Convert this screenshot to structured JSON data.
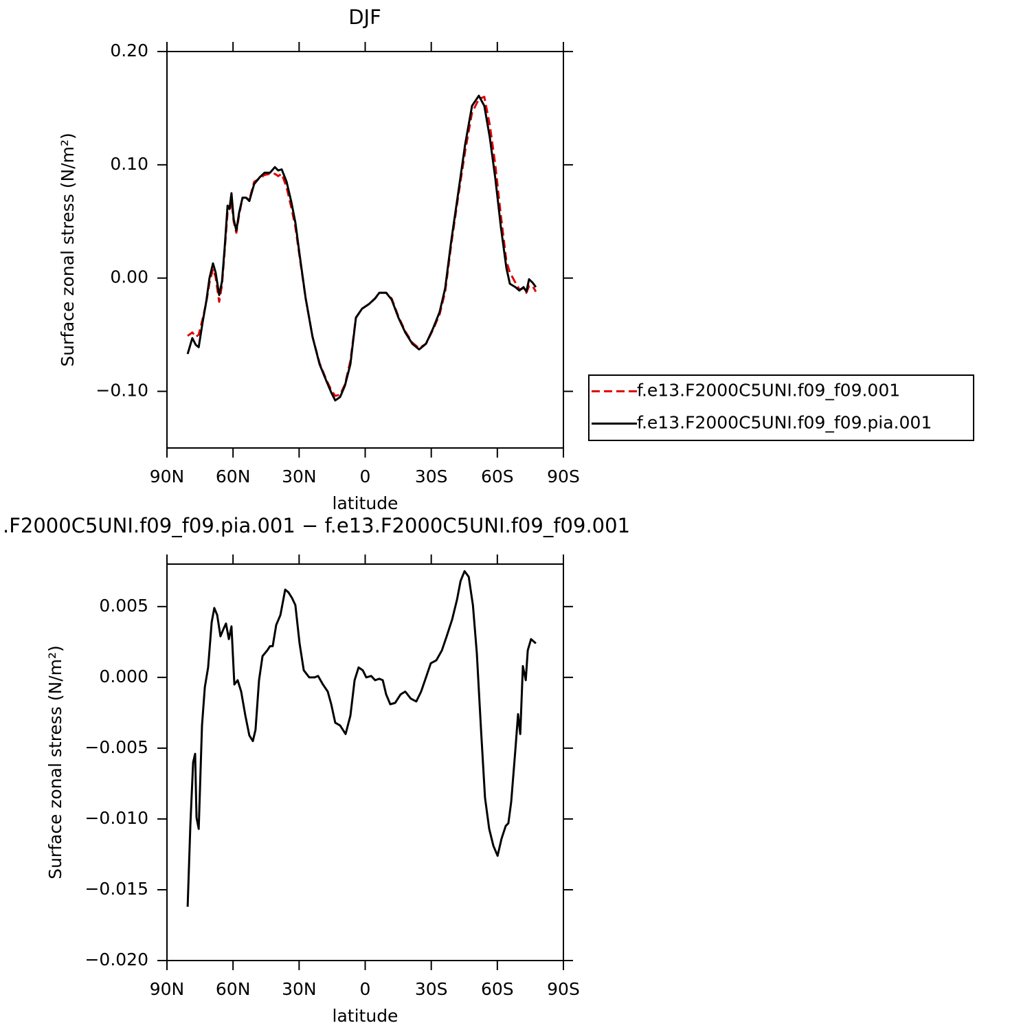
{
  "chart_data": [
    {
      "type": "line",
      "title": "DJF",
      "x_label": "latitude",
      "y_label": "Surface zonal stress (N/m²)",
      "xlim": [
        90,
        -90
      ],
      "ylim": [
        -0.15,
        0.2
      ],
      "xticks": [
        {
          "value": 90,
          "label": "90N"
        },
        {
          "value": 60,
          "label": "60N"
        },
        {
          "value": 30,
          "label": "30N"
        },
        0,
        {
          "value": -30,
          "label": "30S"
        },
        {
          "value": -60,
          "label": "60S"
        },
        {
          "value": -90,
          "label": "90S"
        }
      ],
      "yticks": [
        {
          "value": 0.2,
          "label": "0.20"
        },
        {
          "value": 0.1,
          "label": "0.10"
        },
        {
          "value": 0,
          "label": "0.00"
        },
        {
          "value": -0.1,
          "label": "−0.10"
        }
      ],
      "legend": "outside-right",
      "x": [
        80.6,
        78.5,
        76.9,
        75.6,
        73.8,
        72.2,
        70.7,
        69.1,
        67.9,
        66.3,
        65,
        63.8,
        62.5,
        61.6,
        60.7,
        59.7,
        58.5,
        57.2,
        55.7,
        54.1,
        52.6,
        50.4,
        47.9,
        45.7,
        43.2,
        41,
        39.5,
        37.9,
        35.7,
        33.5,
        31.7,
        29.8,
        27,
        23.9,
        20.7,
        17.6,
        15.4,
        13.6,
        11.4,
        9.2,
        6.7,
        4.2,
        1.4,
        -1.7,
        -4.5,
        -6.4,
        -9.5,
        -12,
        -15.1,
        -18.2,
        -21.4,
        -24.5,
        -27.6,
        -30.7,
        -33.8,
        -36.3,
        -39.1,
        -42.3,
        -45.4,
        -48.5,
        -51.6,
        -54.1,
        -56.6,
        -59.1,
        -61.6,
        -64.1,
        -65.7,
        -68.2,
        -70,
        -71.9,
        -73.2,
        -74.4,
        -76,
        -77.5
      ],
      "series": [
        {
          "name": "f.e13.F2000C5UNI.f09_f09.001",
          "color": "#e00000",
          "line_style": "dashed",
          "values": [
            -0.051,
            -0.048,
            -0.052,
            -0.05,
            -0.036,
            -0.022,
            -0.004,
            0.008,
            0.001,
            -0.021,
            -0.006,
            0.024,
            0.058,
            0.06,
            0.068,
            0.05,
            0.04,
            0.056,
            0.071,
            0.071,
            0.069,
            0.085,
            0.088,
            0.091,
            0.092,
            0.092,
            0.09,
            0.092,
            0.08,
            0.062,
            0.045,
            0.019,
            -0.018,
            -0.052,
            -0.075,
            -0.09,
            -0.099,
            -0.104,
            -0.103,
            -0.094,
            -0.073,
            -0.035,
            -0.027,
            -0.023,
            -0.018,
            -0.013,
            -0.013,
            -0.018,
            -0.034,
            -0.047,
            -0.057,
            -0.062,
            -0.058,
            -0.046,
            -0.032,
            -0.012,
            0.03,
            0.073,
            0.112,
            0.146,
            0.158,
            0.16,
            0.135,
            0.1,
            0.055,
            0.015,
            0.005,
            -0.004,
            -0.01,
            -0.009,
            -0.013,
            -0.007,
            -0.007,
            -0.012
          ]
        },
        {
          "name": "f.e13.F2000C5UNI.f09_f09.pia.001",
          "color": "#000000",
          "line_style": "solid",
          "values": [
            -0.067,
            -0.053,
            -0.059,
            -0.061,
            -0.039,
            -0.021,
            0,
            0.013,
            0.005,
            -0.015,
            -0.003,
            0.027,
            0.064,
            0.061,
            0.075,
            0.052,
            0.042,
            0.058,
            0.071,
            0.071,
            0.068,
            0.083,
            0.089,
            0.093,
            0.093,
            0.098,
            0.095,
            0.096,
            0.085,
            0.067,
            0.049,
            0.021,
            -0.018,
            -0.052,
            -0.076,
            -0.091,
            -0.101,
            -0.108,
            -0.105,
            -0.095,
            -0.076,
            -0.035,
            -0.027,
            -0.023,
            -0.018,
            -0.013,
            -0.013,
            -0.019,
            -0.035,
            -0.048,
            -0.058,
            -0.063,
            -0.058,
            -0.045,
            -0.03,
            -0.009,
            0.033,
            0.076,
            0.118,
            0.152,
            0.161,
            0.152,
            0.124,
            0.088,
            0.045,
            0.009,
            -0.005,
            -0.008,
            -0.011,
            -0.008,
            -0.012,
            -0.001,
            -0.004,
            -0.008
          ]
        }
      ]
    },
    {
      "type": "line",
      "title": ".F2000C5UNI.f09_f09.pia.001 − f.e13.F2000C5UNI.f09_f09.001",
      "x_label": "latitude",
      "y_label": "Surface zonal stress (N/m²)",
      "xlim": [
        90,
        -90
      ],
      "ylim": [
        -0.02,
        0.008
      ],
      "xticks": [
        {
          "value": 90,
          "label": "90N"
        },
        {
          "value": 60,
          "label": "60N"
        },
        {
          "value": 30,
          "label": "30N"
        },
        0,
        {
          "value": -30,
          "label": "30S"
        },
        {
          "value": -60,
          "label": "60S"
        },
        {
          "value": -90,
          "label": "90S"
        }
      ],
      "yticks": [
        0.005,
        {
          "value": 0,
          "label": "0.000"
        },
        {
          "value": -0.005,
          "label": "−0.005"
        },
        {
          "value": -0.01,
          "label": "−0.010"
        },
        {
          "value": -0.015,
          "label": "−0.015"
        },
        {
          "value": -0.02,
          "label": "−0.020"
        }
      ],
      "color": "#000000",
      "x": [
        80.6,
        79.4,
        78.1,
        77.2,
        76.6,
        75.6,
        74.1,
        72.8,
        71.3,
        69.7,
        68.5,
        67.2,
        65.7,
        64.4,
        63.2,
        61.9,
        60.7,
        59.4,
        57.9,
        56.3,
        54.4,
        52.6,
        51,
        49.8,
        48.2,
        46.6,
        44.5,
        43.2,
        42,
        40.4,
        38.5,
        36.3,
        34.8,
        33.2,
        31.7,
        29.8,
        27.9,
        25.4,
        22.9,
        21.4,
        19.2,
        17,
        15.4,
        13.6,
        11.4,
        8.9,
        6.7,
        4.8,
        3,
        1.1,
        -0.5,
        -2.7,
        -4.5,
        -6.4,
        -8,
        -9.5,
        -11.4,
        -13.6,
        -16.1,
        -18.2,
        -20.7,
        -23.2,
        -25.4,
        -27.6,
        -29.8,
        -32.3,
        -34.8,
        -37,
        -39.5,
        -41.7,
        -43.3,
        -45.1,
        -47,
        -48.9,
        -50.7,
        -52.6,
        -54.4,
        -56.3,
        -58.2,
        -60.1,
        -61.9,
        -63.8,
        -65,
        -66.3,
        -68.2,
        -69.4,
        -70.4,
        -71.6,
        -72.9,
        -73.8,
        -75.3,
        -77.5
      ],
      "values": [
        -0.0162,
        -0.0105,
        -0.006,
        -0.0054,
        -0.0099,
        -0.0107,
        -0.0034,
        -0.0007,
        0.0007,
        0.0039,
        0.0049,
        0.0044,
        0.0029,
        0.0034,
        0.0038,
        0.0027,
        0.0036,
        -0.0005,
        -0.0002,
        -0.001,
        -0.0027,
        -0.0041,
        -0.0045,
        -0.0037,
        -0.0002,
        0.0015,
        0.0019,
        0.0022,
        0.0022,
        0.0037,
        0.0044,
        0.0062,
        0.006,
        0.0056,
        0.0051,
        0.0024,
        0.0005,
        0,
        0,
        0.0001,
        -0.0005,
        -0.001,
        -0.0019,
        -0.0032,
        -0.0034,
        -0.004,
        -0.0027,
        -0.0002,
        0.0007,
        0.0005,
        0,
        0.0001,
        -0.0002,
        -0.0001,
        -0.0002,
        -0.0012,
        -0.0019,
        -0.0018,
        -0.0012,
        -0.001,
        -0.0015,
        -0.0017,
        -0.001,
        0,
        0.001,
        0.0012,
        0.0019,
        0.0029,
        0.0041,
        0.0055,
        0.0068,
        0.0075,
        0.0071,
        0.0051,
        0.0017,
        -0.0037,
        -0.0085,
        -0.0107,
        -0.0119,
        -0.0126,
        -0.0114,
        -0.0105,
        -0.0103,
        -0.0088,
        -0.0051,
        -0.0026,
        -0.004,
        0.0008,
        -0.0002,
        0.0019,
        0.0027,
        0.0024
      ]
    }
  ]
}
